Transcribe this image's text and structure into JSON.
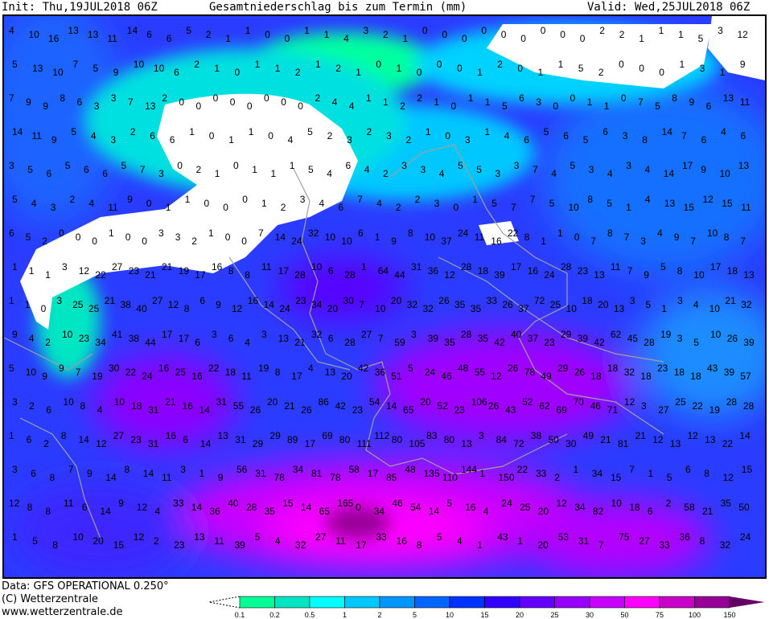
{
  "header": {
    "init": "Init: Thu,19JUL2018 06Z",
    "title": "Gesamtniederschlag bis zum Termin (mm)",
    "valid": "Valid: Wed,25JUL2018 06Z"
  },
  "footer": {
    "data": "Data: GFS OPERATIONAL 0.250°",
    "copyright": "(C) Wetterzentrale",
    "url": "www.wetterzentrale.de"
  },
  "legend": {
    "ticks": [
      "0.1",
      "0.2",
      "0.5",
      "1",
      "2",
      "5",
      "10",
      "15",
      "20",
      "25",
      "30",
      "50",
      "75",
      "100",
      "150"
    ],
    "colors": [
      "#00ff96",
      "#00e6c3",
      "#00ffff",
      "#00c8ff",
      "#0096ff",
      "#0064ff",
      "#0032ff",
      "#3200ff",
      "#6400ff",
      "#9600ff",
      "#c800ff",
      "#ff00ff",
      "#c800c8",
      "#960096",
      "#640064"
    ]
  },
  "map": {
    "value_rows": [
      "4 10 16 13 13 11 14 6 6 5 2 1 1 0 0 1 1 4 3 2 1 0 0 0 0 0 0 0 0 0 2 2 1 1 1 5 3 12",
      "5 13 10 7 5 9 10 10 6 2 1 0 1 1 2 1 2 1 0 1 0 0 0 1 2 0 1 1 5 2 0 0 0 1 3 1 9",
      "7 9 9 8 6 3 3 7 13 2 0 0 0 0 0 0 0 0 2 4 4 1 1 2 2 1 0 1 1 5 6 3 0 0 1 1 0 7 5 8 9 6 13 11",
      "14 11 9 5 4 3 2 6 6 1 0 1 1 0 4 5 2 3 2 3 2 1 0 3 1 4 6 5 6 5 6 3 8 14 7 6 4 6",
      "3 5 6 5 6 6 5 7 3 0 2 1 0 1 1 1 5 4 6 4 2 3 3 4 5 5 3 3 7 4 5 3 4 3 4 14 17 9 10 13",
      "5 4 3 2 4 11 9 0 1 1 0 0 0 1 2 3 4 6 7 4 2 2 3 0 1 5 7 7 5 10 8 5 1 4 13 15 12 15 11",
      "6 5 2 0 0 0 1 0 0 3 3 2 1 0 0 7 14 24 32 10 10 6 1 9 8 10 37 24 11 16 22 8 1 1 0 7 8 7 3 4 9 7 10 8 7",
      "1 1 1 3 12 22 27 23 21 21 19 17 16 8 8 11 17 28 10 6 28 1 64 44 31 36 12 28 18 39 17 16 24 28 23 13 11 7 9 5 8 10 17 18 13",
      "1 1 0 3 25 25 21 38 40 27 12 8 6 9 12 16 14 24 23 34 20 30 7 10 20 32 32 26 35 35 33 26 37 72 25 10 18 20 13 3 5 1 3 4 10 21 32",
      "9 4 2 10 23 34 41 38 44 17 17 6 3 6 4 3 13 21 32 6 28 27 7 59 3 39 35 28 35 42 40 37 23 29 39 42 62 45 28 19 3 5 10 26 39",
      "5 10 9 9 7 19 30 22 24 16 25 16 22 18 11 19 8 17 4 13 20 42 36 51 5 24 46 48 55 12 26 78 49 29 26 18 18 32 18 23 18 18 43 39 57",
      "3 2 6 10 8 4 10 18 31 21 16 14 31 55 26 20 21 26 86 42 23 54 14 65 20 52 23 106 26 43 52 62 69 70 46 71 12 3 27 25 22 19 28 28",
      "1 6 2 8 14 12 27 23 31 16 6 14 13 31 29 29 89 17 69 80 111 112 80 105 83 80 13 3 84 72 38 50 30 49 21 81 21 12 13 12 13 22 14",
      "3 6 8 7 9 14 8 14 11 3 1 9 56 31 78 34 81 78 58 17 85 48 135 110 144 1 150 22 33 2 1 34 15 7 1 5 6 8 12 15",
      "12 8 8 11 6 14 9 12 4 33 14 36 40 28 35 15 14 65 165 0 34 46 54 14 5 16 4 24 25 20 12 34 82 10 18 6 2 58 21 35 50",
      "1 5 8 10 20 15 12 2 23 13 11 39 5 4 32 27 11 17 33 16 8 5 4 1 43 1 20 53 31 7 75 27 33 36 8 32 24"
    ]
  }
}
